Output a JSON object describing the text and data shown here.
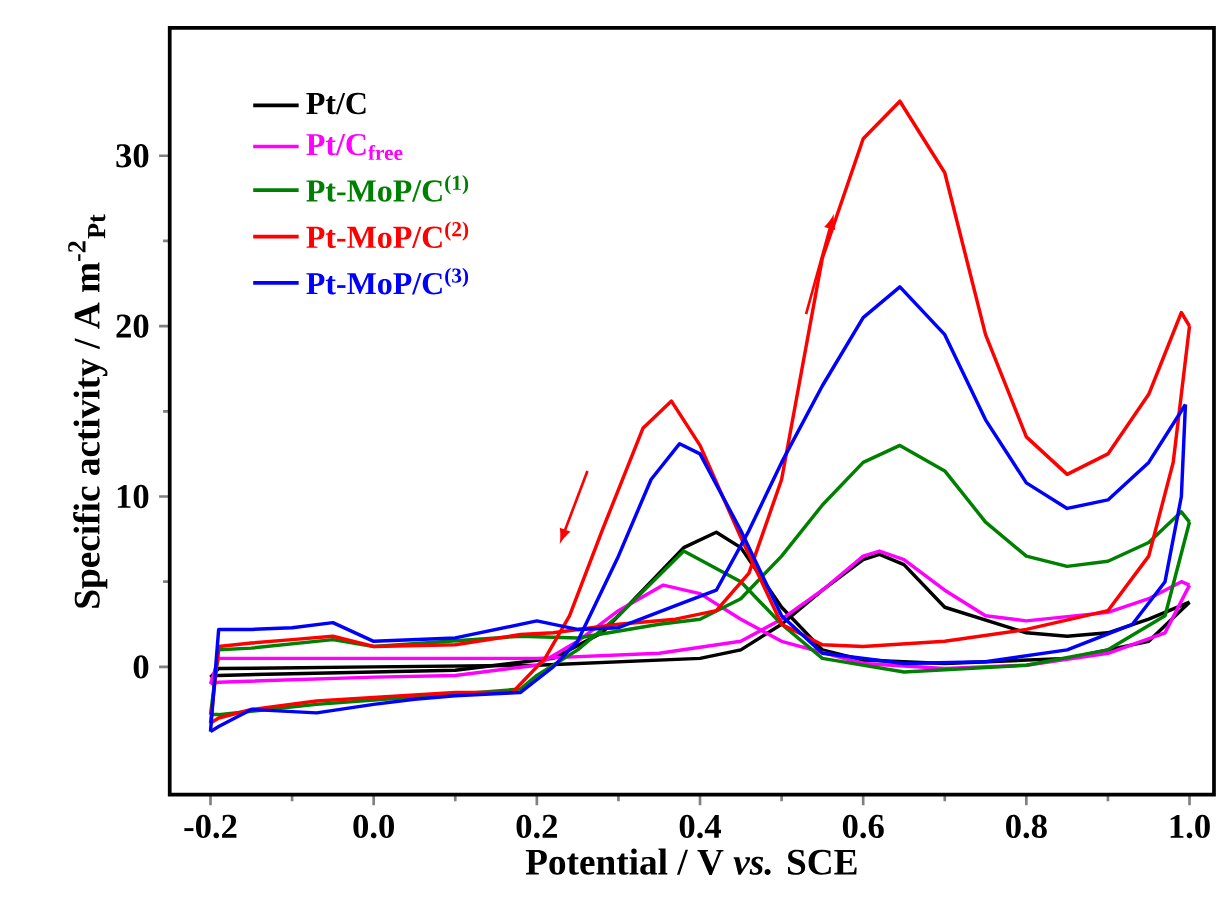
{
  "chart_data": {
    "type": "line",
    "xlabel": "Potential / V *vs.* SCE",
    "ylabel": "Specific activity / A m$^{-2}$$_{Pt}$",
    "xlim": [
      -0.25,
      1.03
    ],
    "ylim": [
      -7.5,
      37.5
    ],
    "xticks": [
      {
        "value": -0.2,
        "label": "-0.2"
      },
      {
        "value": 0,
        "label": "0.0"
      },
      {
        "value": 0.2,
        "label": "0.2"
      },
      {
        "value": 0.4,
        "label": "0.4"
      },
      {
        "value": 0.6,
        "label": "0.6"
      },
      {
        "value": 0.8,
        "label": "0.8"
      },
      {
        "value": 1.0,
        "label": "1.0"
      }
    ],
    "yticks": [
      0,
      10,
      20,
      30
    ],
    "legend": "top left",
    "line_style": "solid",
    "series": [
      {
        "name": "Pt/C",
        "color": "#000000",
        "x": [
          -0.2,
          -0.19,
          0.0,
          0.2,
          0.4,
          0.45,
          0.5,
          0.55,
          0.6,
          0.62,
          0.65,
          0.7,
          0.8,
          0.85,
          0.9,
          0.95,
          1.0
        ],
        "values": [
          -0.6,
          -0.1,
          0.0,
          0.1,
          0.5,
          1.0,
          2.5,
          4.5,
          6.3,
          6.6,
          6.0,
          3.5,
          2.0,
          1.8,
          2.0,
          2.8,
          3.8
        ]
      },
      {
        "color": "#000000",
        "x": [
          -0.2,
          -0.19,
          -0.1,
          0.1,
          0.15,
          0.22,
          0.28,
          0.33,
          0.38,
          0.42,
          0.45,
          0.5,
          0.55,
          0.6,
          0.7,
          0.85,
          0.95,
          1.0
        ],
        "values": [
          -0.6,
          -0.5,
          -0.4,
          -0.2,
          0.1,
          0.5,
          2.0,
          4.5,
          7.0,
          7.9,
          7.0,
          3.5,
          1.0,
          0.4,
          0.2,
          0.5,
          1.5,
          3.8
        ]
      },
      {
        "name": "Pt/C$_{free}$",
        "color": "#ff00ff",
        "x": [
          -0.2,
          -0.19,
          0.0,
          0.2,
          0.35,
          0.45,
          0.5,
          0.55,
          0.6,
          0.62,
          0.65,
          0.7,
          0.75,
          0.8,
          0.9,
          0.95,
          0.99,
          1.0
        ],
        "values": [
          -1.0,
          0.5,
          0.5,
          0.5,
          0.8,
          1.5,
          2.8,
          4.5,
          6.5,
          6.8,
          6.3,
          4.5,
          3.0,
          2.7,
          3.2,
          4.0,
          5.0,
          4.8
        ]
      },
      {
        "color": "#ff00ff",
        "x": [
          -0.2,
          -0.19,
          0.0,
          0.1,
          0.2,
          0.25,
          0.3,
          0.355,
          0.4,
          0.45,
          0.5,
          0.6,
          0.7,
          0.8,
          0.9,
          0.97,
          1.0
        ],
        "values": [
          -1.0,
          -0.9,
          -0.6,
          -0.5,
          0.1,
          1.5,
          3.3,
          4.8,
          4.3,
          2.8,
          1.5,
          0.2,
          -0.1,
          0.1,
          0.8,
          2.0,
          4.8
        ]
      },
      {
        "name": "Pt-MoP/C$^{(1)}$",
        "color": "#008000",
        "x": [
          -0.2,
          -0.19,
          -0.15,
          -0.05,
          0.0,
          0.18,
          0.25,
          0.35,
          0.4,
          0.45,
          0.5,
          0.55,
          0.6,
          0.645,
          0.7,
          0.75,
          0.8,
          0.85,
          0.9,
          0.95,
          0.99,
          1.0
        ],
        "values": [
          -2.8,
          1.0,
          1.1,
          1.6,
          1.2,
          1.8,
          1.7,
          2.5,
          2.8,
          4.0,
          6.5,
          9.5,
          12.0,
          13.0,
          11.5,
          8.5,
          6.5,
          5.9,
          6.2,
          7.3,
          9.1,
          8.5
        ]
      },
      {
        "color": "#008000",
        "x": [
          -0.2,
          -0.19,
          -0.07,
          0.1,
          0.18,
          0.2,
          0.25,
          0.3,
          0.38,
          0.45,
          0.5,
          0.55,
          0.65,
          0.8,
          0.9,
          0.97,
          1.0
        ],
        "values": [
          -2.8,
          -2.8,
          -2.2,
          -1.6,
          -1.3,
          -0.5,
          1.0,
          3.0,
          6.8,
          5.0,
          2.5,
          0.5,
          -0.3,
          0.1,
          1.0,
          3.0,
          8.5
        ]
      },
      {
        "name": "Pt-MoP/C$^{(2)}$",
        "color": "#ff0000",
        "x": [
          -0.2,
          -0.19,
          -0.15,
          -0.1,
          -0.05,
          0.0,
          0.1,
          0.18,
          0.22,
          0.3,
          0.37,
          0.42,
          0.46,
          0.5,
          0.55,
          0.6,
          0.645,
          0.7,
          0.75,
          0.8,
          0.85,
          0.9,
          0.95,
          0.99,
          1.0
        ],
        "values": [
          -3.3,
          1.2,
          1.4,
          1.6,
          1.8,
          1.2,
          1.3,
          1.9,
          2.0,
          2.5,
          2.8,
          3.3,
          5.5,
          11.0,
          24.0,
          31.0,
          33.2,
          29.0,
          19.5,
          13.5,
          11.3,
          12.5,
          16.0,
          20.8,
          20.0
        ]
      },
      {
        "color": "#ff0000",
        "x": [
          -0.2,
          -0.19,
          -0.15,
          -0.07,
          0.0,
          0.1,
          0.17,
          0.21,
          0.24,
          0.28,
          0.33,
          0.365,
          0.4,
          0.45,
          0.5,
          0.55,
          0.6,
          0.7,
          0.8,
          0.9,
          0.95,
          0.98,
          1.0
        ],
        "values": [
          -3.3,
          -3.0,
          -2.5,
          -2.0,
          -1.8,
          -1.5,
          -1.5,
          0.5,
          3.0,
          8.0,
          14.0,
          15.6,
          13.0,
          7.6,
          2.5,
          1.3,
          1.2,
          1.5,
          2.2,
          3.3,
          6.5,
          12.0,
          20.0
        ]
      },
      {
        "name": "Pt-MoP/C$^{(3)}$",
        "color": "#0000ff",
        "x": [
          -0.2,
          -0.19,
          -0.15,
          -0.1,
          -0.05,
          0.0,
          0.1,
          0.2,
          0.25,
          0.3,
          0.37,
          0.42,
          0.46,
          0.5,
          0.55,
          0.6,
          0.645,
          0.7,
          0.75,
          0.8,
          0.85,
          0.9,
          0.95,
          0.995
        ],
        "values": [
          -3.8,
          2.2,
          2.2,
          2.3,
          2.6,
          1.5,
          1.7,
          2.7,
          2.2,
          2.3,
          3.6,
          4.5,
          8.0,
          12.0,
          16.5,
          20.5,
          22.3,
          19.5,
          14.5,
          10.8,
          9.3,
          9.8,
          12.0,
          15.4
        ]
      },
      {
        "color": "#0000ff",
        "x": [
          -0.2,
          -0.19,
          -0.15,
          -0.07,
          0.0,
          0.05,
          0.1,
          0.18,
          0.22,
          0.25,
          0.3,
          0.34,
          0.375,
          0.4,
          0.45,
          0.5,
          0.55,
          0.65,
          0.75,
          0.85,
          0.93,
          0.97,
          0.99,
          0.995
        ],
        "values": [
          -3.8,
          -3.5,
          -2.5,
          -2.7,
          -2.2,
          -1.9,
          -1.7,
          -1.5,
          0.0,
          1.5,
          6.5,
          11.0,
          13.1,
          12.5,
          8.0,
          3.0,
          0.8,
          0.2,
          0.3,
          1.0,
          2.5,
          5.0,
          10.0,
          15.4
        ]
      }
    ]
  }
}
